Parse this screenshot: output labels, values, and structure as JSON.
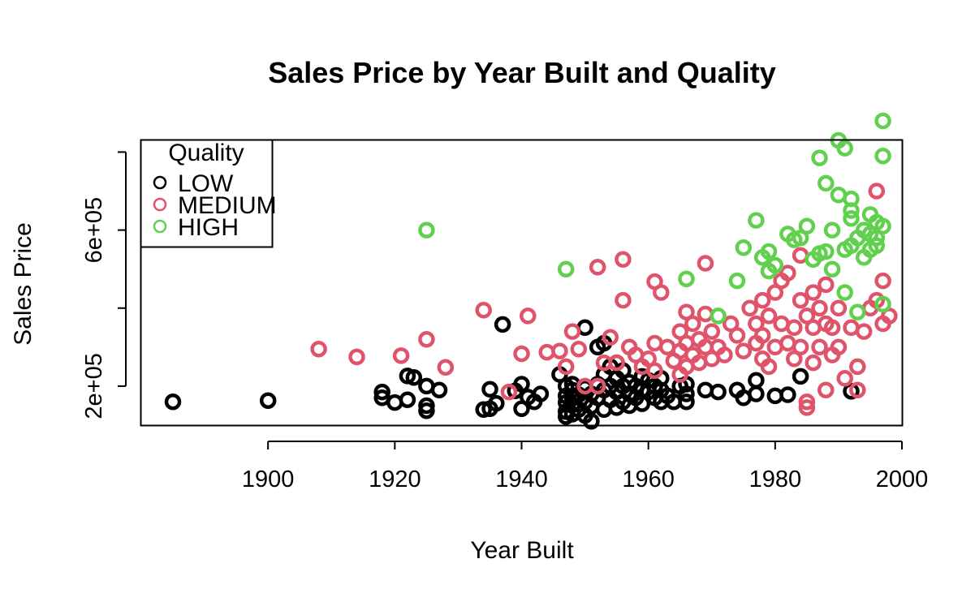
{
  "chart_data": {
    "type": "scatter",
    "title": "Sales Price by Year Built and Quality",
    "xlabel": "Year Built",
    "ylabel": "Sales Price",
    "xlim": [
      1880,
      2000
    ],
    "ylim": [
      100000,
      830000
    ],
    "x_ticks": [
      {
        "value": 1900,
        "label": "1900"
      },
      {
        "value": 1920,
        "label": "1920"
      },
      {
        "value": 1940,
        "label": "1940"
      },
      {
        "value": 1960,
        "label": "1960"
      },
      {
        "value": 1980,
        "label": "1980"
      },
      {
        "value": 2000,
        "label": "2000"
      }
    ],
    "y_ticks": [
      {
        "value": 200000,
        "label": "2e+05"
      },
      {
        "value": 400000,
        "label": ""
      },
      {
        "value": 600000,
        "label": "6e+05"
      },
      {
        "value": 800000,
        "label": ""
      }
    ],
    "grid": false,
    "legend": {
      "title": "Quality",
      "placement": "top-left"
    },
    "series": [
      {
        "name": "LOW",
        "color": "#000000",
        "points": [
          [
            1885,
            160000
          ],
          [
            1900,
            163000
          ],
          [
            1918,
            185000
          ],
          [
            1918,
            170000
          ],
          [
            1920,
            158000
          ],
          [
            1922,
            165000
          ],
          [
            1922,
            226000
          ],
          [
            1923,
            222000
          ],
          [
            1925,
            200000
          ],
          [
            1925,
            150000
          ],
          [
            1925,
            137000
          ],
          [
            1927,
            190000
          ],
          [
            1934,
            140000
          ],
          [
            1935,
            192000
          ],
          [
            1935,
            142000
          ],
          [
            1936,
            156000
          ],
          [
            1937,
            358000
          ],
          [
            1939,
            188000
          ],
          [
            1940,
            205000
          ],
          [
            1940,
            142000
          ],
          [
            1941,
            172000
          ],
          [
            1942,
            160000
          ],
          [
            1943,
            180000
          ],
          [
            1946,
            230000
          ],
          [
            1947,
            200000
          ],
          [
            1947,
            175000
          ],
          [
            1947,
            158000
          ],
          [
            1947,
            135000
          ],
          [
            1947,
            122000
          ],
          [
            1948,
            205000
          ],
          [
            1948,
            190000
          ],
          [
            1948,
            170000
          ],
          [
            1948,
            152000
          ],
          [
            1948,
            128000
          ],
          [
            1949,
            178000
          ],
          [
            1949,
            140000
          ],
          [
            1950,
            350000
          ],
          [
            1950,
            195000
          ],
          [
            1950,
            160000
          ],
          [
            1950,
            125000
          ],
          [
            1951,
            180000
          ],
          [
            1951,
            148000
          ],
          [
            1951,
            110000
          ],
          [
            1952,
            205000
          ],
          [
            1952,
            170000
          ],
          [
            1952,
            300000
          ],
          [
            1953,
            310000
          ],
          [
            1953,
            230000
          ],
          [
            1953,
            190000
          ],
          [
            1953,
            140000
          ],
          [
            1954,
            250000
          ],
          [
            1954,
            200000
          ],
          [
            1954,
            165000
          ],
          [
            1955,
            260000
          ],
          [
            1955,
            220000
          ],
          [
            1955,
            185000
          ],
          [
            1955,
            145000
          ],
          [
            1956,
            240000
          ],
          [
            1956,
            200000
          ],
          [
            1956,
            160000
          ],
          [
            1957,
            210000
          ],
          [
            1957,
            180000
          ],
          [
            1957,
            150000
          ],
          [
            1958,
            200000
          ],
          [
            1958,
            170000
          ],
          [
            1959,
            225000
          ],
          [
            1959,
            190000
          ],
          [
            1959,
            155000
          ],
          [
            1960,
            215000
          ],
          [
            1960,
            185000
          ],
          [
            1961,
            200000
          ],
          [
            1961,
            170000
          ],
          [
            1962,
            220000
          ],
          [
            1962,
            190000
          ],
          [
            1962,
            160000
          ],
          [
            1963,
            175000
          ],
          [
            1964,
            160000
          ],
          [
            1965,
            200000
          ],
          [
            1966,
            205000
          ],
          [
            1966,
            180000
          ],
          [
            1966,
            160000
          ],
          [
            1969,
            190000
          ],
          [
            1971,
            185000
          ],
          [
            1974,
            190000
          ],
          [
            1975,
            170000
          ],
          [
            1977,
            215000
          ],
          [
            1977,
            180000
          ],
          [
            1980,
            175000
          ],
          [
            1982,
            178000
          ],
          [
            1984,
            225000
          ],
          [
            1992,
            187000
          ]
        ]
      },
      {
        "name": "MEDIUM",
        "color": "#DF536B",
        "points": [
          [
            1908,
            295000
          ],
          [
            1914,
            275000
          ],
          [
            1921,
            278000
          ],
          [
            1925,
            320000
          ],
          [
            1928,
            248000
          ],
          [
            1934,
            395000
          ],
          [
            1938,
            185000
          ],
          [
            1940,
            283000
          ],
          [
            1941,
            380000
          ],
          [
            1944,
            287000
          ],
          [
            1946,
            290000
          ],
          [
            1947,
            250000
          ],
          [
            1948,
            340000
          ],
          [
            1949,
            295000
          ],
          [
            1950,
            200000
          ],
          [
            1952,
            505000
          ],
          [
            1952,
            200000
          ],
          [
            1953,
            260000
          ],
          [
            1954,
            325000
          ],
          [
            1955,
            260000
          ],
          [
            1956,
            525000
          ],
          [
            1956,
            420000
          ],
          [
            1957,
            300000
          ],
          [
            1958,
            280000
          ],
          [
            1959,
            250000
          ],
          [
            1960,
            270000
          ],
          [
            1961,
            468000
          ],
          [
            1961,
            310000
          ],
          [
            1961,
            240000
          ],
          [
            1962,
            440000
          ],
          [
            1963,
            300000
          ],
          [
            1964,
            265000
          ],
          [
            1965,
            340000
          ],
          [
            1965,
            290000
          ],
          [
            1965,
            230000
          ],
          [
            1966,
            390000
          ],
          [
            1966,
            310000
          ],
          [
            1966,
            250000
          ],
          [
            1967,
            360000
          ],
          [
            1967,
            280000
          ],
          [
            1968,
            320000
          ],
          [
            1968,
            260000
          ],
          [
            1969,
            515000
          ],
          [
            1969,
            385000
          ],
          [
            1969,
            300000
          ],
          [
            1970,
            340000
          ],
          [
            1970,
            270000
          ],
          [
            1971,
            300000
          ],
          [
            1972,
            280000
          ],
          [
            1973,
            360000
          ],
          [
            1974,
            330000
          ],
          [
            1975,
            290000
          ],
          [
            1976,
            400000
          ],
          [
            1977,
            360000
          ],
          [
            1977,
            310000
          ],
          [
            1978,
            420000
          ],
          [
            1978,
            330000
          ],
          [
            1978,
            270000
          ],
          [
            1979,
            380000
          ],
          [
            1979,
            250000
          ],
          [
            1980,
            440000
          ],
          [
            1980,
            300000
          ],
          [
            1981,
            470000
          ],
          [
            1981,
            360000
          ],
          [
            1982,
            490000
          ],
          [
            1982,
            310000
          ],
          [
            1983,
            350000
          ],
          [
            1983,
            270000
          ],
          [
            1984,
            535000
          ],
          [
            1984,
            420000
          ],
          [
            1984,
            300000
          ],
          [
            1985,
            380000
          ],
          [
            1985,
            160000
          ],
          [
            1985,
            145000
          ],
          [
            1986,
            440000
          ],
          [
            1986,
            350000
          ],
          [
            1986,
            260000
          ],
          [
            1987,
            400000
          ],
          [
            1987,
            300000
          ],
          [
            1988,
            460000
          ],
          [
            1988,
            360000
          ],
          [
            1988,
            190000
          ],
          [
            1989,
            350000
          ],
          [
            1989,
            280000
          ],
          [
            1990,
            400000
          ],
          [
            1990,
            300000
          ],
          [
            1991,
            220000
          ],
          [
            1992,
            350000
          ],
          [
            1993,
            250000
          ],
          [
            1993,
            190000
          ],
          [
            1994,
            340000
          ],
          [
            1995,
            400000
          ],
          [
            1996,
            700000
          ],
          [
            1996,
            420000
          ],
          [
            1997,
            360000
          ],
          [
            1997,
            470000
          ],
          [
            1998,
            380000
          ]
        ]
      },
      {
        "name": "HIGH",
        "color": "#61D04F",
        "points": [
          [
            1925,
            600000
          ],
          [
            1947,
            500000
          ],
          [
            1966,
            475000
          ],
          [
            1971,
            380000
          ],
          [
            1974,
            470000
          ],
          [
            1975,
            555000
          ],
          [
            1977,
            625000
          ],
          [
            1978,
            530000
          ],
          [
            1979,
            495000
          ],
          [
            1979,
            545000
          ],
          [
            1980,
            510000
          ],
          [
            1982,
            590000
          ],
          [
            1983,
            575000
          ],
          [
            1984,
            580000
          ],
          [
            1985,
            610000
          ],
          [
            1986,
            525000
          ],
          [
            1987,
            785000
          ],
          [
            1987,
            540000
          ],
          [
            1988,
            545000
          ],
          [
            1988,
            720000
          ],
          [
            1989,
            500000
          ],
          [
            1989,
            600000
          ],
          [
            1990,
            690000
          ],
          [
            1990,
            830000
          ],
          [
            1991,
            810000
          ],
          [
            1991,
            440000
          ],
          [
            1991,
            550000
          ],
          [
            1992,
            680000
          ],
          [
            1992,
            650000
          ],
          [
            1992,
            630000
          ],
          [
            1992,
            560000
          ],
          [
            1993,
            580000
          ],
          [
            1993,
            390000
          ],
          [
            1994,
            530000
          ],
          [
            1994,
            600000
          ],
          [
            1995,
            640000
          ],
          [
            1995,
            590000
          ],
          [
            1995,
            550000
          ],
          [
            1996,
            620000
          ],
          [
            1996,
            580000
          ],
          [
            1996,
            560000
          ],
          [
            1997,
            880000
          ],
          [
            1997,
            790000
          ],
          [
            1997,
            610000
          ],
          [
            1997,
            410000
          ]
        ]
      }
    ]
  }
}
